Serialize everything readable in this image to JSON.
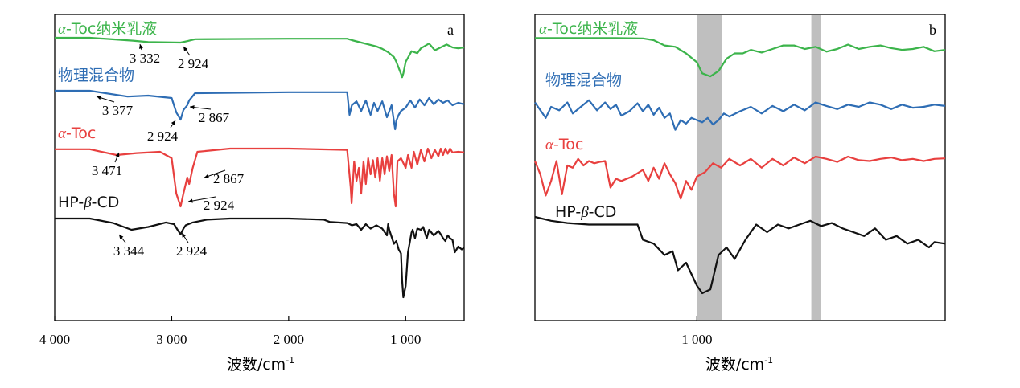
{
  "chart_data": [
    {
      "panel": "a",
      "type": "line",
      "xlabel": "波数/cm",
      "xlabel_sup": "-1",
      "xlim": [
        4000,
        500
      ],
      "x_reversed": true,
      "x_ticks": [
        4000,
        3000,
        2000,
        1000
      ],
      "x_tick_labels": [
        "4 000",
        "3 000",
        "2 000",
        "1 000"
      ],
      "ylabel": "",
      "y_ticks_shown": false,
      "series": [
        {
          "name_prefix": "α",
          "name_rest": "-Toc纳米乳液",
          "color": "#3cb44b",
          "offset": 3.0,
          "x": [
            4000,
            3700,
            3332,
            3200,
            2924,
            2867,
            2800,
            2000,
            1500,
            1460,
            1380,
            1250,
            1200,
            1150,
            1100,
            1080,
            1040,
            1030,
            1020,
            1000,
            950,
            900,
            870,
            800,
            750,
            700,
            650,
            600,
            550,
            500
          ],
          "y": [
            0,
            0,
            -0.06,
            -0.09,
            -0.1,
            -0.07,
            -0.03,
            -0.02,
            -0.02,
            -0.05,
            -0.1,
            -0.18,
            -0.23,
            -0.3,
            -0.4,
            -0.5,
            -0.75,
            -0.82,
            -0.74,
            -0.5,
            -0.28,
            -0.32,
            -0.22,
            -0.12,
            -0.26,
            -0.2,
            -0.14,
            -0.2,
            -0.22,
            -0.2
          ]
        },
        {
          "name": "物理混合物",
          "color": "#2e6db4",
          "offset": 2.0,
          "x": [
            4000,
            3700,
            3377,
            3200,
            3000,
            2960,
            2924,
            2900,
            2867,
            2850,
            2800,
            2000,
            1500,
            1480,
            1460,
            1420,
            1380,
            1340,
            1300,
            1270,
            1240,
            1200,
            1160,
            1120,
            1090,
            1080,
            1060,
            1040,
            1000,
            960,
            920,
            880,
            840,
            800,
            760,
            720,
            680,
            640,
            600,
            550,
            500
          ],
          "y": [
            0,
            0,
            -0.12,
            -0.1,
            -0.15,
            -0.45,
            -0.6,
            -0.4,
            -0.3,
            -0.2,
            -0.05,
            -0.03,
            -0.03,
            -0.5,
            -0.3,
            -0.22,
            -0.42,
            -0.2,
            -0.5,
            -0.25,
            -0.42,
            -0.22,
            -0.55,
            -0.3,
            -0.8,
            -0.62,
            -0.5,
            -0.42,
            -0.35,
            -0.2,
            -0.35,
            -0.18,
            -0.3,
            -0.15,
            -0.28,
            -0.18,
            -0.25,
            -0.2,
            -0.3,
            -0.25,
            -0.28
          ]
        },
        {
          "name_prefix": "α",
          "name_rest": "-Toc",
          "color": "#e8403f",
          "offset": 1.0,
          "x": [
            4000,
            3700,
            3471,
            3300,
            3100,
            3000,
            2960,
            2924,
            2900,
            2880,
            2867,
            2850,
            2820,
            2780,
            2500,
            2000,
            1500,
            1470,
            1462,
            1440,
            1420,
            1400,
            1380,
            1360,
            1340,
            1320,
            1300,
            1280,
            1260,
            1240,
            1220,
            1200,
            1180,
            1160,
            1140,
            1120,
            1100,
            1085,
            1070,
            1040,
            1000,
            980,
            950,
            930,
            900,
            870,
            840,
            810,
            780,
            750,
            720,
            700,
            680,
            660,
            640,
            620,
            600,
            550,
            500
          ],
          "y": [
            -0.01,
            -0.01,
            -0.1,
            -0.07,
            -0.05,
            -0.15,
            -0.7,
            -0.9,
            -0.7,
            -0.55,
            -0.45,
            -0.55,
            -0.3,
            -0.05,
            0,
            0,
            -0.02,
            -0.6,
            -0.85,
            -0.2,
            -0.5,
            -0.3,
            -0.7,
            -0.2,
            -0.55,
            -0.15,
            -0.4,
            -0.18,
            -0.45,
            -0.15,
            -0.5,
            -0.15,
            -0.4,
            -0.12,
            -0.35,
            -0.1,
            -0.7,
            -0.9,
            -0.2,
            -0.15,
            -0.3,
            -0.1,
            -0.3,
            -0.05,
            -0.25,
            -0.02,
            -0.2,
            0,
            -0.15,
            -0.02,
            -0.12,
            0,
            -0.1,
            0.0,
            -0.08,
            0.0,
            -0.06,
            -0.05,
            -0.06
          ]
        },
        {
          "name_prefix": "HP-",
          "name_italic": "β",
          "name_rest": "-CD",
          "color": "#111111",
          "offset": 0.0,
          "x": [
            4000,
            3700,
            3500,
            3344,
            3200,
            3050,
            2980,
            2950,
            2924,
            2900,
            2880,
            2820,
            2700,
            2500,
            2000,
            1700,
            1650,
            1500,
            1460,
            1420,
            1380,
            1340,
            1300,
            1250,
            1200,
            1160,
            1150,
            1140,
            1100,
            1080,
            1060,
            1040,
            1030,
            1020,
            1000,
            980,
            950,
            940,
            920,
            900,
            870,
            850,
            820,
            800,
            760,
            720,
            700,
            680,
            660,
            640,
            620,
            600,
            580,
            550,
            520,
            500
          ],
          "y": [
            0,
            0,
            -0.08,
            -0.2,
            -0.15,
            -0.07,
            -0.1,
            -0.2,
            -0.28,
            -0.18,
            -0.12,
            -0.07,
            -0.02,
            0,
            0,
            -0.02,
            -0.06,
            -0.08,
            -0.12,
            -0.1,
            -0.2,
            -0.1,
            -0.18,
            -0.12,
            -0.18,
            -0.3,
            -0.1,
            -0.2,
            -0.45,
            -0.4,
            -0.55,
            -0.62,
            -1.1,
            -1.4,
            -1.2,
            -0.6,
            -0.25,
            -0.2,
            -0.35,
            -0.18,
            -0.2,
            -0.15,
            -0.35,
            -0.2,
            -0.3,
            -0.22,
            -0.28,
            -0.35,
            -0.4,
            -0.3,
            -0.35,
            -0.38,
            -0.6,
            -0.5,
            -0.55,
            -0.52
          ]
        }
      ],
      "annotations": [
        {
          "series": 0,
          "text": "3 332",
          "x": 3332
        },
        {
          "series": 0,
          "text": "2 924",
          "x": 2924
        },
        {
          "series": 1,
          "text": "3 377",
          "x": 3377
        },
        {
          "series": 1,
          "text": "2 867",
          "x": 2867
        },
        {
          "series": 1,
          "text": "2 924",
          "x": 2924
        },
        {
          "series": 2,
          "text": "3 471",
          "x": 3471
        },
        {
          "series": 2,
          "text": "2 867",
          "x": 2867
        },
        {
          "series": 2,
          "text": "2 924",
          "x": 2924
        },
        {
          "series": 3,
          "text": "3 344",
          "x": 3344
        },
        {
          "series": 3,
          "text": "2 924",
          "x": 2924
        }
      ]
    },
    {
      "panel": "b",
      "type": "line",
      "xlabel": "波数/cm",
      "xlabel_sup": "-1",
      "x_ticks": [
        1000
      ],
      "x_tick_labels": [
        "1 000"
      ],
      "ylabel": "",
      "y_ticks_shown": false,
      "highlight_bands": [
        [
          953,
          1000
        ],
        [
          771,
          788
        ]
      ],
      "series": [
        {
          "name_prefix": "α",
          "name_rest": "-Toc纳米乳液",
          "color": "#3cb44b",
          "x": [
            1300,
            1250,
            1200,
            1150,
            1100,
            1080,
            1060,
            1040,
            1020,
            1000,
            990,
            975,
            960,
            945,
            930,
            915,
            900,
            880,
            860,
            840,
            820,
            800,
            780,
            760,
            740,
            720,
            700,
            680,
            660,
            640,
            620,
            600,
            580,
            560,
            540
          ],
          "y": [
            0.05,
            0.05,
            0.05,
            0.05,
            0.04,
            0.0,
            -0.12,
            -0.15,
            -0.3,
            -0.5,
            -0.75,
            -0.82,
            -0.7,
            -0.42,
            -0.3,
            -0.3,
            -0.22,
            -0.28,
            -0.2,
            -0.12,
            -0.12,
            -0.2,
            -0.15,
            -0.26,
            -0.2,
            -0.1,
            -0.2,
            -0.15,
            -0.12,
            -0.18,
            -0.22,
            -0.2,
            -0.15,
            -0.25,
            -0.22
          ]
        },
        {
          "name": "物理混合物",
          "color": "#2e6db4",
          "x": [
            1300,
            1280,
            1270,
            1255,
            1240,
            1230,
            1215,
            1200,
            1185,
            1170,
            1160,
            1150,
            1140,
            1125,
            1110,
            1100,
            1090,
            1080,
            1070,
            1060,
            1050,
            1040,
            1030,
            1020,
            1010,
            1000,
            990,
            980,
            970,
            960,
            950,
            940,
            920,
            900,
            880,
            860,
            840,
            820,
            800,
            780,
            760,
            740,
            720,
            700,
            680,
            660,
            640,
            620,
            600,
            580,
            560,
            540
          ],
          "y": [
            -0.1,
            -0.45,
            -0.2,
            -0.28,
            -0.1,
            -0.35,
            -0.2,
            -0.05,
            -0.28,
            -0.1,
            -0.25,
            -0.15,
            -0.4,
            -0.3,
            -0.12,
            -0.3,
            -0.15,
            -0.38,
            -0.22,
            -0.45,
            -0.35,
            -0.72,
            -0.5,
            -0.58,
            -0.45,
            -0.5,
            -0.55,
            -0.45,
            -0.6,
            -0.5,
            -0.35,
            -0.42,
            -0.3,
            -0.2,
            -0.35,
            -0.18,
            -0.3,
            -0.15,
            -0.28,
            -0.1,
            -0.18,
            -0.25,
            -0.15,
            -0.2,
            -0.1,
            -0.15,
            -0.25,
            -0.15,
            -0.22,
            -0.2,
            -0.15,
            -0.18
          ]
        },
        {
          "name_prefix": "α",
          "name_rest": "-Toc",
          "color": "#e8403f",
          "x": [
            1300,
            1290,
            1280,
            1270,
            1260,
            1250,
            1240,
            1230,
            1220,
            1210,
            1200,
            1190,
            1180,
            1170,
            1160,
            1150,
            1140,
            1120,
            1100,
            1090,
            1080,
            1070,
            1060,
            1050,
            1040,
            1030,
            1020,
            1010,
            1000,
            985,
            970,
            955,
            940,
            920,
            900,
            880,
            860,
            840,
            820,
            800,
            780,
            760,
            740,
            720,
            700,
            680,
            660,
            640,
            620,
            600,
            580,
            560,
            540
          ],
          "y": [
            -0.1,
            -0.4,
            -0.88,
            -0.55,
            -0.1,
            -0.85,
            -0.2,
            -0.25,
            -0.05,
            -0.2,
            -0.1,
            -0.15,
            -0.12,
            -0.1,
            -0.7,
            -0.5,
            -0.55,
            -0.45,
            -0.3,
            -0.55,
            -0.25,
            -0.5,
            -0.15,
            -0.4,
            -0.6,
            -0.95,
            -0.55,
            -0.75,
            -0.45,
            -0.35,
            -0.15,
            -0.25,
            -0.05,
            -0.2,
            -0.05,
            -0.25,
            -0.05,
            -0.2,
            -0.02,
            -0.15,
            0.0,
            -0.05,
            -0.12,
            0.0,
            -0.08,
            -0.1,
            -0.05,
            -0.02,
            -0.08,
            -0.05,
            -0.1,
            -0.05,
            -0.04
          ]
        },
        {
          "name_prefix": "HP-",
          "name_italic": "β",
          "name_rest": "-CD",
          "color": "#111111",
          "x": [
            1300,
            1270,
            1240,
            1200,
            1160,
            1130,
            1110,
            1100,
            1080,
            1060,
            1045,
            1035,
            1020,
            1000,
            990,
            975,
            960,
            945,
            930,
            910,
            890,
            870,
            850,
            830,
            810,
            790,
            770,
            750,
            730,
            710,
            690,
            670,
            650,
            630,
            610,
            590,
            570,
            560,
            540
          ],
          "y": [
            0.0,
            -0.05,
            -0.08,
            -0.1,
            -0.1,
            -0.1,
            -0.1,
            -0.3,
            -0.35,
            -0.5,
            -0.45,
            -0.7,
            -0.6,
            -0.9,
            -1.0,
            -0.95,
            -0.5,
            -0.4,
            -0.55,
            -0.3,
            -0.1,
            -0.2,
            -0.1,
            -0.15,
            -0.1,
            -0.05,
            -0.12,
            -0.08,
            -0.15,
            -0.2,
            -0.25,
            -0.15,
            -0.3,
            -0.25,
            -0.35,
            -0.3,
            -0.4,
            -0.33,
            -0.35
          ]
        }
      ],
      "panel_b_xlim": [
        1300,
        540
      ],
      "panel_b_offsets": [
        3.0,
        2.0,
        1.0,
        0.0
      ]
    }
  ]
}
